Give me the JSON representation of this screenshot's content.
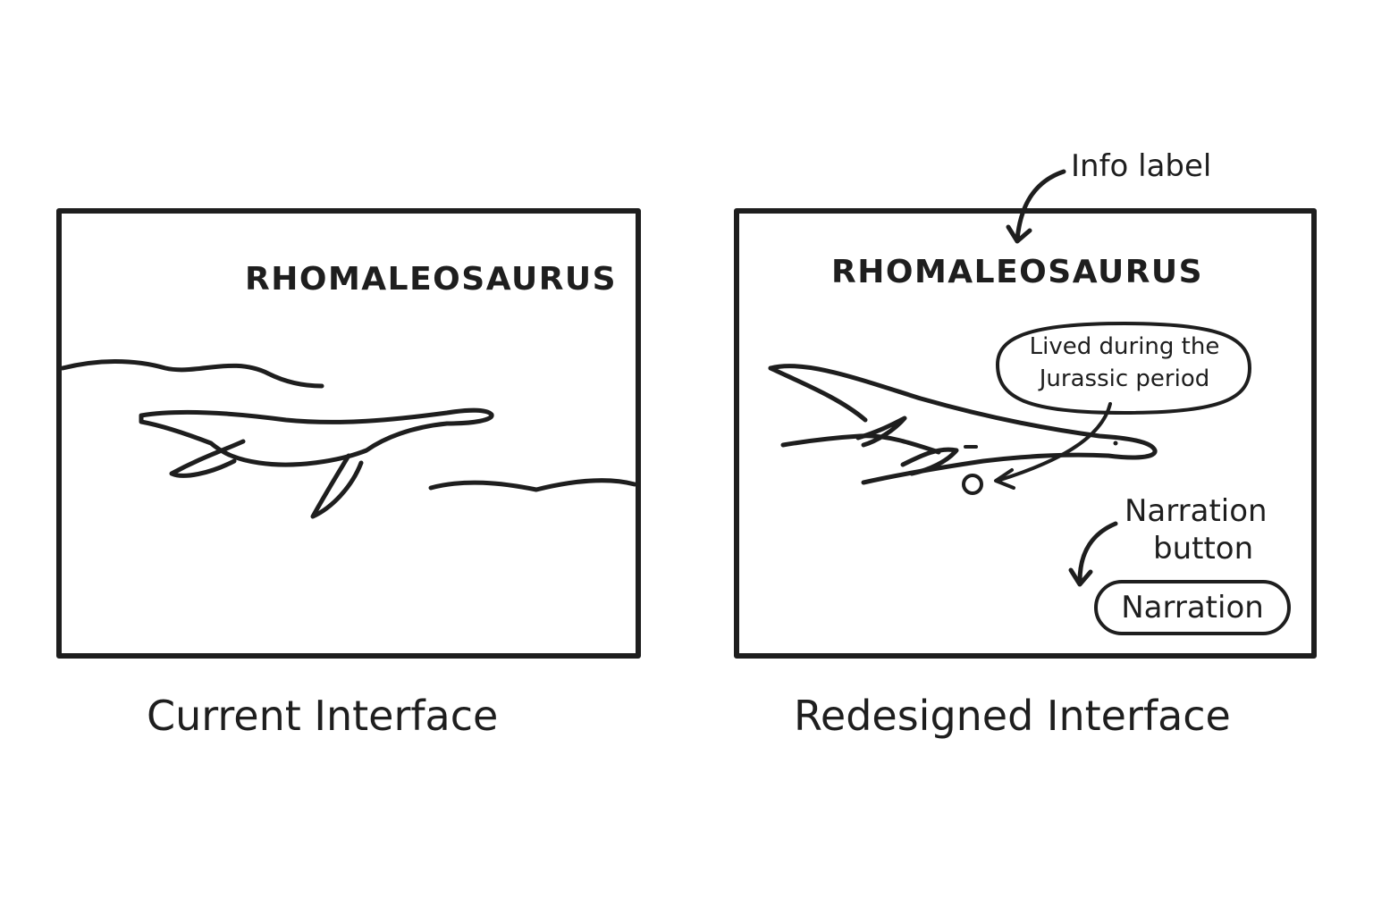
{
  "current": {
    "species_title": "RHOMALEOSAURUS",
    "caption": "Current Interface"
  },
  "redesigned": {
    "species_title": "RHOMALEOSAURUS",
    "caption": "Redesigned Interface",
    "annotations": {
      "info_label": "Info label",
      "narration_button_line1": "Narration",
      "narration_button_line2": "button"
    },
    "info_bubble": {
      "line1": "Lived during the",
      "line2": "Jurassic period"
    },
    "narration_button_label": "Narration"
  },
  "icons": [
    "plesiosaur-drawing",
    "curved-arrow-icon",
    "info-dot-icon"
  ]
}
